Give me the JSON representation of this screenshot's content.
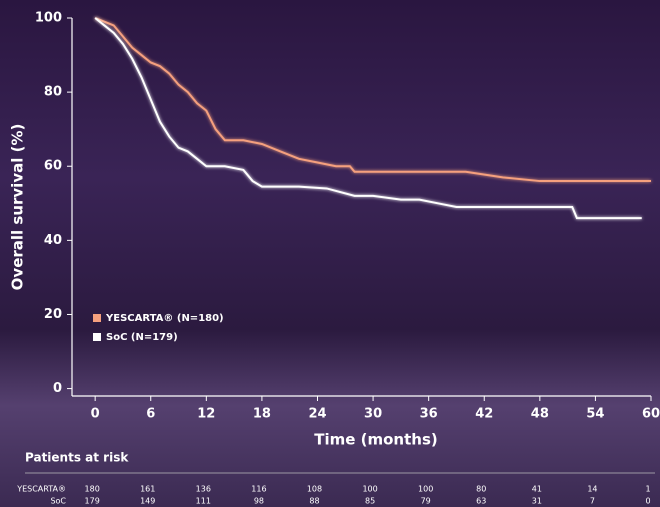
{
  "chart_data": {
    "type": "line",
    "ylabel": "Overall survival (%)",
    "xlabel": "Time (months)",
    "xlim": [
      -2.5,
      60
    ],
    "ylim": [
      -2,
      100
    ],
    "xticks": [
      0,
      6,
      12,
      18,
      24,
      30,
      36,
      42,
      48,
      54,
      60
    ],
    "yticks": [
      0,
      20,
      40,
      60,
      80,
      100
    ],
    "series": [
      {
        "name": "YESCARTA® (N=180)",
        "color": "#f5a07e",
        "x": [
          0,
          1,
          2,
          3,
          4,
          5,
          6,
          7,
          8,
          9,
          10,
          11,
          12,
          13,
          14,
          16,
          18,
          20,
          22,
          24,
          26,
          27.5,
          28,
          32,
          36,
          40,
          44,
          48,
          52,
          56,
          60
        ],
        "values": [
          100,
          99,
          98,
          95,
          92,
          90,
          88,
          87,
          85,
          82,
          80,
          77,
          75,
          70,
          67,
          67,
          66,
          64,
          62,
          61,
          60,
          60,
          58.5,
          58.5,
          58.5,
          58.5,
          57,
          56,
          56,
          56,
          56
        ]
      },
      {
        "name": "SoC (N=179)",
        "color": "#ffffff",
        "x": [
          0,
          1,
          2,
          3,
          4,
          5,
          6,
          7,
          8,
          9,
          10,
          11,
          12,
          14,
          16,
          17,
          18,
          22,
          25,
          28,
          30,
          33,
          35,
          37,
          39,
          44,
          48,
          51.5,
          52,
          56,
          59
        ],
        "values": [
          100,
          98,
          96,
          93,
          89,
          84,
          78,
          72,
          68,
          65,
          64,
          62,
          60,
          60,
          59,
          56,
          54.5,
          54.5,
          54,
          52,
          52,
          51,
          51,
          50,
          49,
          49,
          49,
          49,
          46,
          46,
          46
        ]
      }
    ],
    "legend": "lower-left",
    "risk_table": {
      "title": "Patients at risk",
      "rows": [
        {
          "label": "YESCARTA®",
          "values": [
            180,
            161,
            136,
            116,
            108,
            100,
            100,
            80,
            41,
            14,
            1
          ]
        },
        {
          "label": "SoC",
          "values": [
            179,
            149,
            111,
            98,
            88,
            85,
            79,
            63,
            31,
            7,
            0
          ]
        }
      ]
    }
  }
}
